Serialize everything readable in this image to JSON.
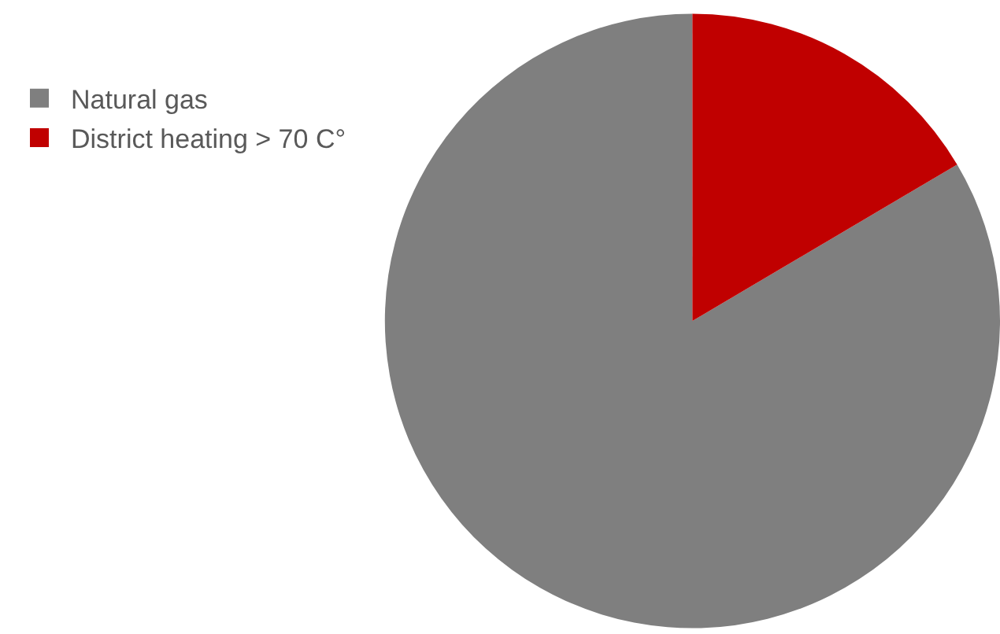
{
  "chart_data": {
    "type": "pie",
    "categories": [
      "Natural gas",
      "District heating > 70 C°"
    ],
    "values": [
      83.5,
      16.5
    ],
    "colors": [
      "#7f7f7f",
      "#c00000"
    ],
    "legend": "top left"
  }
}
